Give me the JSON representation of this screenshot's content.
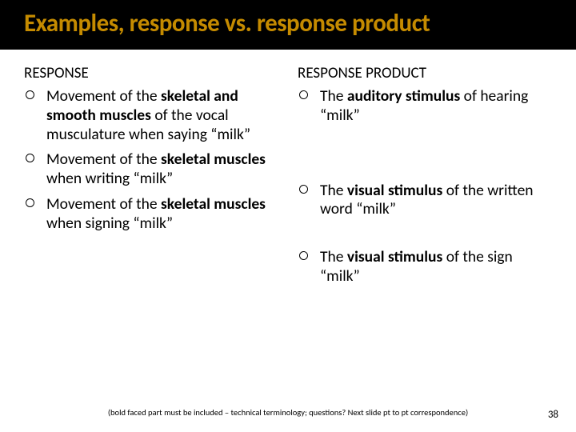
{
  "colors": {
    "title_bar_bg": "#000000",
    "title_text": "#c58b00",
    "body_text": "#000000",
    "slide_bg": "#ffffff"
  },
  "typography": {
    "title_fontsize": 31,
    "heading_fontsize": 19,
    "body_fontsize": 19.5,
    "footnote_fontsize": 10.5,
    "pagenum_fontsize": 13,
    "font_family": "Calibri"
  },
  "title": "Examples, response vs. response product",
  "left": {
    "heading": "RESPONSE",
    "items": [
      {
        "pre": "Movement of the ",
        "bold": "skeletal and smooth muscles",
        "post": " of the vocal musculature when saying “milk”"
      },
      {
        "pre": "Movement of the ",
        "bold": "skeletal muscles",
        "post": " when writing “milk”"
      },
      {
        "pre": "Movement of the ",
        "bold": "skeletal muscles",
        "post": " when signing “milk”"
      }
    ]
  },
  "right": {
    "heading": "RESPONSE PRODUCT",
    "items": [
      {
        "pre": "The ",
        "bold": "auditory stimulus",
        "post": " of hearing “milk”"
      },
      {
        "pre": "The ",
        "bold": "visual stimulus",
        "post": " of the written word “milk”"
      },
      {
        "pre": "The ",
        "bold": "visual stimulus",
        "post": " of the sign “milk”"
      }
    ]
  },
  "footnote": "(bold faced part must be included – technical terminology; questions? Next slide pt to pt correspondence)",
  "page_number": "38"
}
